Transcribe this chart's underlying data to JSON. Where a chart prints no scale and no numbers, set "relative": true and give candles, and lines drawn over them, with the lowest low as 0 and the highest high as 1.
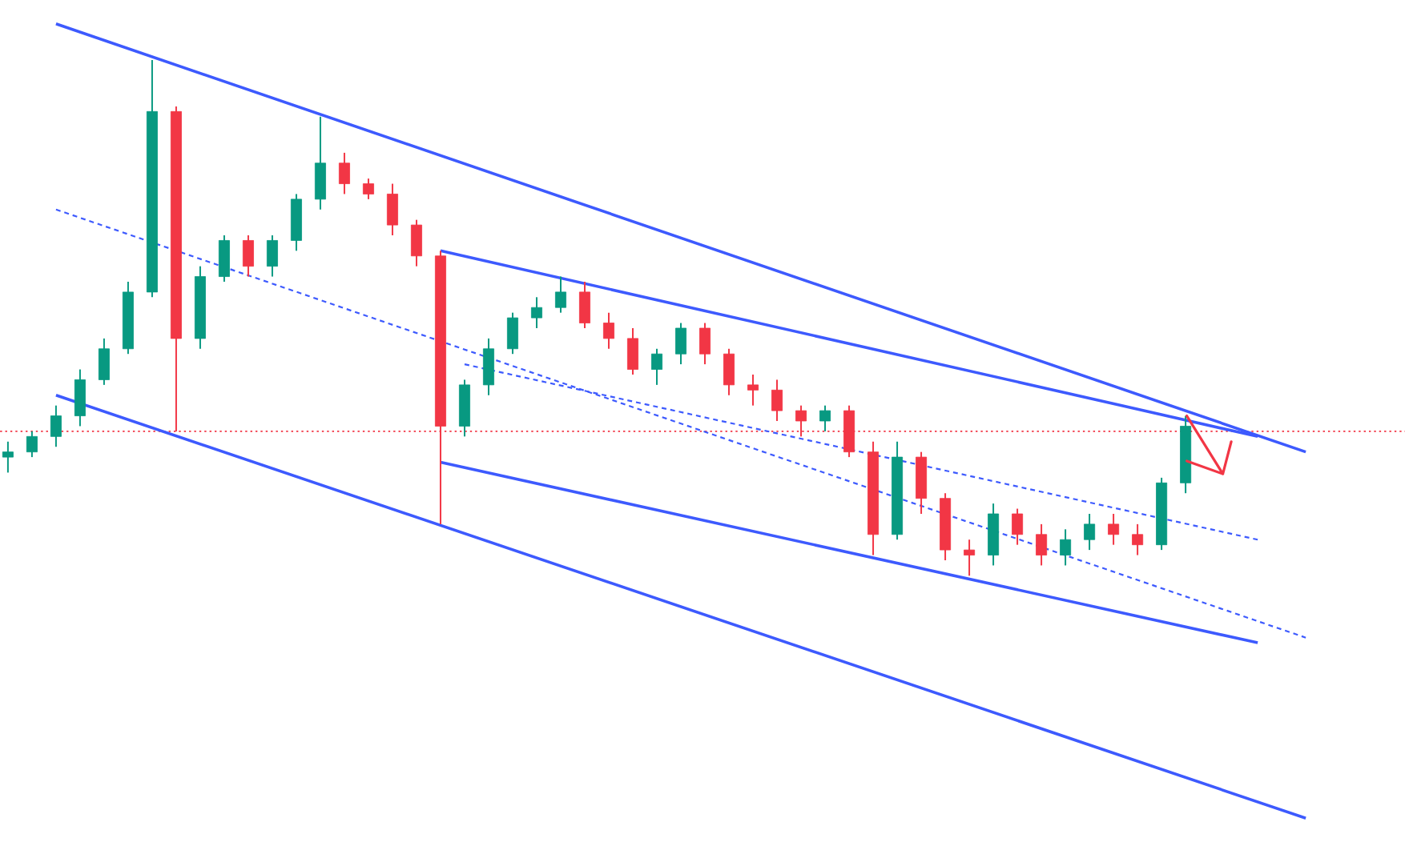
{
  "chart_data": {
    "type": "candlestick",
    "relative": true,
    "colors": [
      "#089981",
      "#089981",
      "#089981",
      "#089981",
      "#089981",
      "#089981",
      "#089981",
      "#f23645",
      "#089981",
      "#089981",
      "#f23645",
      "#089981",
      "#089981",
      "#089981",
      "#f23645",
      "#f23645",
      "#f23645",
      "#f23645",
      "#f23645",
      "#089981",
      "#089981",
      "#089981",
      "#089981",
      "#089981",
      "#f23645",
      "#f23645",
      "#f23645",
      "#089981",
      "#089981",
      "#f23645",
      "#f23645",
      "#f23645",
      "#f23645",
      "#f23645",
      "#089981",
      "#f23645",
      "#f23645",
      "#089981",
      "#f23645",
      "#f23645",
      "#f23645",
      "#089981",
      "#f23645",
      "#f23645",
      "#089981",
      "#089981",
      "#f23645",
      "#f23645",
      "#089981",
      "#089981",
      null,
      null,
      null,
      null,
      null,
      null
    ],
    "categories": [
      null,
      null,
      null,
      null,
      null,
      null,
      null,
      null,
      null,
      null,
      null,
      null,
      null,
      null,
      null,
      null,
      null,
      null,
      null,
      null,
      null,
      null,
      null,
      null,
      null,
      null,
      null,
      null,
      null,
      null,
      null,
      null,
      null,
      null,
      null,
      null,
      null,
      null,
      null,
      null,
      null,
      null,
      null,
      null,
      null,
      null,
      null,
      null,
      null,
      null,
      null,
      null,
      null,
      null,
      null,
      null
    ],
    "ohlc": [
      [
        0.23,
        0.26,
        0.2,
        0.24
      ],
      [
        0.24,
        0.28,
        0.23,
        0.27
      ],
      [
        0.27,
        0.33,
        0.25,
        0.31
      ],
      [
        0.31,
        0.4,
        0.29,
        0.38
      ],
      [
        0.38,
        0.46,
        0.37,
        0.44
      ],
      [
        0.44,
        0.57,
        0.43,
        0.55
      ],
      [
        0.55,
        1.0,
        0.54,
        0.9
      ],
      [
        0.9,
        0.91,
        0.28,
        0.46
      ],
      [
        0.46,
        0.6,
        0.44,
        0.58
      ],
      [
        0.58,
        0.66,
        0.57,
        0.65
      ],
      [
        0.65,
        0.66,
        0.58,
        0.6
      ],
      [
        0.6,
        0.66,
        0.58,
        0.65
      ],
      [
        0.65,
        0.74,
        0.63,
        0.73
      ],
      [
        0.73,
        0.89,
        0.71,
        0.8
      ],
      [
        0.8,
        0.82,
        0.74,
        0.76
      ],
      [
        0.76,
        0.77,
        0.73,
        0.74
      ],
      [
        0.74,
        0.76,
        0.66,
        0.68
      ],
      [
        0.68,
        0.69,
        0.6,
        0.62
      ],
      [
        0.62,
        0.63,
        0.1,
        0.29
      ],
      [
        0.29,
        0.38,
        0.27,
        0.37
      ],
      [
        0.37,
        0.46,
        0.35,
        0.44
      ],
      [
        0.44,
        0.51,
        0.43,
        0.5
      ],
      [
        0.5,
        0.54,
        0.48,
        0.52
      ],
      [
        0.52,
        0.58,
        0.51,
        0.55
      ],
      [
        0.55,
        0.57,
        0.48,
        0.49
      ],
      [
        0.49,
        0.51,
        0.44,
        0.46
      ],
      [
        0.46,
        0.48,
        0.39,
        0.4
      ],
      [
        0.4,
        0.44,
        0.37,
        0.43
      ],
      [
        0.43,
        0.49,
        0.41,
        0.48
      ],
      [
        0.48,
        0.49,
        0.41,
        0.43
      ],
      [
        0.43,
        0.44,
        0.35,
        0.37
      ],
      [
        0.37,
        0.39,
        0.33,
        0.36
      ],
      [
        0.36,
        0.38,
        0.3,
        0.32
      ],
      [
        0.32,
        0.33,
        0.27,
        0.3
      ],
      [
        0.3,
        0.33,
        0.28,
        0.32
      ],
      [
        0.32,
        0.33,
        0.23,
        0.24
      ],
      [
        0.24,
        0.26,
        0.04,
        0.08
      ],
      [
        0.08,
        0.26,
        0.07,
        0.23
      ],
      [
        0.23,
        0.24,
        0.12,
        0.15
      ],
      [
        0.15,
        0.16,
        0.03,
        0.05
      ],
      [
        0.05,
        0.07,
        0.0,
        0.04
      ],
      [
        0.04,
        0.14,
        0.02,
        0.12
      ],
      [
        0.12,
        0.13,
        0.06,
        0.08
      ],
      [
        0.08,
        0.1,
        0.02,
        0.04
      ],
      [
        0.04,
        0.09,
        0.02,
        0.07
      ],
      [
        0.07,
        0.12,
        0.05,
        0.1
      ],
      [
        0.1,
        0.12,
        0.06,
        0.08
      ],
      [
        0.08,
        0.1,
        0.04,
        0.06
      ],
      [
        0.06,
        0.19,
        0.05,
        0.18
      ],
      [
        0.18,
        0.31,
        0.16,
        0.29
      ],
      null,
      null,
      null,
      null,
      null,
      null
    ],
    "series": [
      {
        "type": "line",
        "color": "#3d5afe",
        "values": [
          null,
          null,
          1.07,
          null,
          null,
          null,
          null,
          null,
          null,
          null,
          null,
          null,
          null,
          null,
          null,
          null,
          null,
          null,
          null,
          null,
          null,
          null,
          null,
          null,
          null,
          null,
          null,
          null,
          null,
          null,
          null,
          null,
          null,
          null,
          null,
          null,
          null,
          null,
          null,
          null,
          null,
          null,
          null,
          null,
          null,
          null,
          null,
          null,
          null,
          null,
          null,
          null,
          null,
          null,
          0.24,
          null
        ]
      },
      {
        "type": "line",
        "color": "#3d5afe",
        "values": [
          null,
          null,
          null,
          null,
          null,
          null,
          null,
          null,
          null,
          null,
          null,
          null,
          null,
          null,
          null,
          null,
          null,
          null,
          0.63,
          null,
          null,
          null,
          null,
          null,
          null,
          null,
          null,
          null,
          null,
          null,
          null,
          null,
          null,
          null,
          null,
          null,
          null,
          null,
          null,
          null,
          null,
          null,
          null,
          null,
          null,
          null,
          null,
          null,
          null,
          null,
          null,
          null,
          0.27,
          null,
          null,
          null
        ]
      },
      {
        "type": "line",
        "color": "#3d5afe",
        "values": [
          null,
          null,
          0.35,
          null,
          null,
          null,
          null,
          null,
          null,
          null,
          null,
          null,
          null,
          null,
          null,
          null,
          null,
          null,
          null,
          null,
          null,
          null,
          null,
          null,
          null,
          null,
          null,
          null,
          null,
          null,
          null,
          null,
          null,
          null,
          null,
          null,
          null,
          null,
          null,
          null,
          null,
          null,
          null,
          null,
          null,
          null,
          null,
          null,
          null,
          null,
          null,
          null,
          null,
          null,
          -0.47,
          null
        ]
      },
      {
        "type": "line",
        "color": "#3d5afe",
        "values": [
          null,
          null,
          null,
          null,
          null,
          null,
          null,
          null,
          null,
          null,
          null,
          null,
          null,
          null,
          null,
          null,
          null,
          null,
          0.22,
          null,
          null,
          null,
          null,
          null,
          null,
          null,
          null,
          null,
          null,
          null,
          null,
          null,
          null,
          null,
          null,
          null,
          null,
          null,
          null,
          null,
          null,
          null,
          null,
          null,
          null,
          null,
          null,
          null,
          null,
          null,
          null,
          null,
          -0.13,
          null,
          null,
          null
        ]
      },
      {
        "type": "line",
        "color": "#3d5afe",
        "line_style": "dashed",
        "values": [
          null,
          null,
          0.71,
          null,
          null,
          null,
          null,
          null,
          null,
          null,
          null,
          null,
          null,
          null,
          null,
          null,
          null,
          null,
          null,
          null,
          null,
          null,
          null,
          null,
          null,
          null,
          null,
          null,
          null,
          null,
          null,
          null,
          null,
          null,
          null,
          null,
          null,
          null,
          null,
          null,
          null,
          null,
          null,
          null,
          null,
          null,
          null,
          null,
          null,
          null,
          null,
          null,
          null,
          null,
          -0.12,
          null
        ]
      },
      {
        "type": "line",
        "color": "#3d5afe",
        "line_style": "dashed",
        "values": [
          null,
          null,
          null,
          null,
          null,
          null,
          null,
          null,
          null,
          null,
          null,
          null,
          null,
          null,
          null,
          null,
          null,
          null,
          null,
          0.41,
          null,
          null,
          null,
          null,
          null,
          null,
          null,
          null,
          null,
          null,
          null,
          null,
          null,
          null,
          null,
          null,
          null,
          null,
          null,
          null,
          null,
          null,
          null,
          null,
          null,
          null,
          null,
          null,
          null,
          null,
          null,
          null,
          0.07,
          null,
          null,
          null
        ]
      }
    ],
    "ref_lines": [
      {
        "axis": "y",
        "value": 0.28,
        "color": "#f23645",
        "line_style": "dotted"
      }
    ]
  }
}
